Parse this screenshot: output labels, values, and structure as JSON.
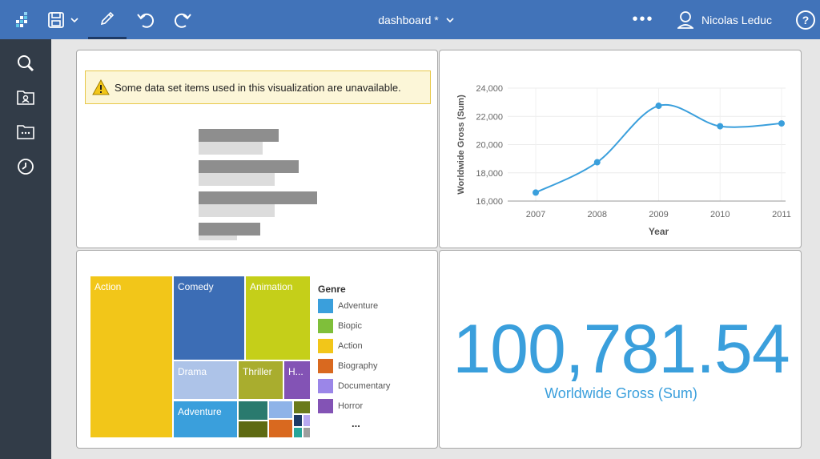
{
  "header": {
    "title": "dashboard *",
    "more": "•••",
    "user_name": "Nicolas Leduc",
    "help": "?"
  },
  "sidebar": {
    "items": [
      {
        "icon": "search-icon"
      },
      {
        "icon": "content-folder-icon"
      },
      {
        "icon": "folder-icon"
      },
      {
        "icon": "recent-icon"
      }
    ]
  },
  "warning": {
    "text": "Some data set items used in this visualization are unavailable."
  },
  "line_chart": {
    "chart_data": {
      "type": "line",
      "x": [
        "2007",
        "2008",
        "2009",
        "2010",
        "2011"
      ],
      "values": [
        16600,
        18750,
        22750,
        21300,
        21500
      ],
      "xlabel": "Year",
      "ylabel": "Worldwide Gross (Sum)",
      "ylim": [
        16000,
        24000
      ],
      "yticks": [
        "16,000",
        "18,000",
        "20,000",
        "22,000",
        "24,000"
      ],
      "color": "#3a9fdc"
    }
  },
  "treemap": {
    "cells": [
      {
        "label": "Action",
        "color": "#f2c619"
      },
      {
        "label": "Comedy",
        "color": "#3c6db5"
      },
      {
        "label": "Animation",
        "color": "#c5cf19"
      },
      {
        "label": "Drama",
        "color": "#adc3e8"
      },
      {
        "label": "Thriller",
        "color": "#a9ad2e"
      },
      {
        "label": "H...",
        "color": "#8353b5"
      },
      {
        "label": "Adventure",
        "color": "#3a9fdc"
      }
    ],
    "legend": {
      "title": "Genre",
      "items": [
        {
          "label": "Adventure",
          "color": "#3a9fdc"
        },
        {
          "label": "Biopic",
          "color": "#7fbf3a"
        },
        {
          "label": "Action",
          "color": "#f2c619"
        },
        {
          "label": "Biography",
          "color": "#d9691f"
        },
        {
          "label": "Documentary",
          "color": "#9b86e8"
        },
        {
          "label": "Horror",
          "color": "#8353b5"
        }
      ],
      "more": "..."
    }
  },
  "kpi": {
    "value": "100,781.54",
    "label": "Worldwide Gross (Sum)"
  }
}
